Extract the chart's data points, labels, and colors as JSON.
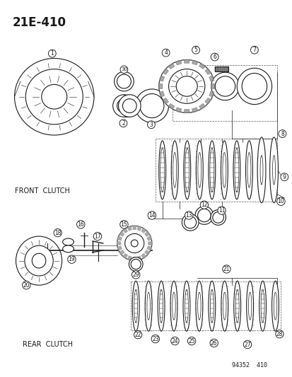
{
  "title": "21E-410",
  "bg_color": "#ffffff",
  "line_color": "#1a1a1a",
  "fig_width": 4.14,
  "fig_height": 5.33,
  "dpi": 100,
  "ref_text": "94352  410"
}
